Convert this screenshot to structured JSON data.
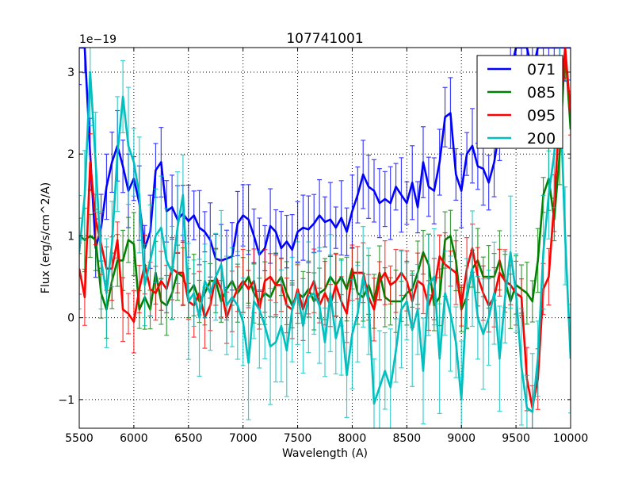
{
  "chart_data": {
    "type": "line",
    "title": "107741001",
    "xlabel": "Wavelength (A)",
    "ylabel": "Flux (erg/s/cm^2/A)",
    "y_offset_label": "1e−19",
    "xlim": [
      5500,
      10000
    ],
    "ylim": [
      -1.35,
      3.3
    ],
    "xticks": [
      5500,
      6000,
      6500,
      7000,
      7500,
      8000,
      8500,
      9000,
      9500,
      10000
    ],
    "yticks": [
      -1,
      0,
      1,
      2,
      3
    ],
    "ytick_labels": [
      "−1",
      "0",
      "1",
      "2",
      "3"
    ],
    "grid": true,
    "legend_position": "top-right",
    "x_start": 5500,
    "x_step": 50,
    "series": [
      {
        "name": "071",
        "color": "#0000ff",
        "yerr": 0.35,
        "values": [
          3.3,
          3.3,
          2.0,
          0.85,
          1.1,
          1.6,
          1.9,
          2.1,
          1.85,
          1.55,
          1.7,
          1.4,
          0.85,
          1.05,
          1.8,
          1.9,
          1.3,
          1.35,
          1.2,
          1.27,
          1.18,
          1.25,
          1.1,
          1.05,
          0.95,
          0.72,
          0.7,
          0.72,
          0.75,
          1.15,
          1.25,
          1.2,
          1.0,
          0.77,
          0.85,
          1.12,
          1.05,
          0.85,
          0.93,
          0.83,
          1.05,
          1.1,
          1.08,
          1.15,
          1.25,
          1.17,
          1.2,
          1.1,
          1.22,
          1.05,
          1.3,
          1.5,
          1.75,
          1.6,
          1.55,
          1.4,
          1.45,
          1.4,
          1.6,
          1.5,
          1.4,
          1.65,
          1.35,
          1.9,
          1.6,
          1.55,
          1.9,
          2.45,
          2.5,
          1.75,
          1.55,
          2.0,
          2.1,
          1.85,
          1.82,
          1.65,
          1.9,
          2.3,
          2.6,
          3.0,
          3.3,
          3.3,
          3.3,
          3.0,
          3.3,
          3.3,
          3.3,
          3.3,
          3.3,
          3.3,
          3.3
        ]
      },
      {
        "name": "085",
        "color": "#008000",
        "yerr": 0.3,
        "values": [
          1.0,
          0.95,
          1.0,
          0.95,
          0.3,
          0.1,
          0.45,
          0.7,
          0.7,
          0.95,
          0.9,
          0.1,
          0.25,
          0.1,
          0.55,
          0.2,
          0.15,
          0.3,
          0.55,
          0.5,
          0.3,
          0.4,
          0.2,
          0.3,
          0.45,
          0.45,
          0.2,
          0.35,
          0.45,
          0.3,
          0.4,
          0.5,
          0.3,
          0.2,
          0.3,
          0.25,
          0.4,
          0.5,
          0.3,
          0.15,
          0.3,
          0.25,
          0.35,
          0.2,
          0.3,
          0.35,
          0.5,
          0.4,
          0.5,
          0.35,
          0.6,
          0.3,
          0.25,
          0.4,
          0.2,
          0.55,
          0.25,
          0.2,
          0.2,
          0.2,
          0.3,
          0.35,
          0.55,
          0.8,
          0.65,
          0.15,
          0.25,
          0.95,
          1.0,
          0.7,
          0.1,
          0.25,
          0.6,
          0.7,
          0.5,
          0.5,
          0.5,
          0.7,
          0.45,
          0.2,
          0.4,
          0.35,
          0.3,
          0.2,
          0.7,
          1.5,
          1.7,
          1.2,
          2.0,
          3.3,
          2.3
        ]
      },
      {
        "name": "095",
        "color": "#ff0000",
        "yerr": 0.3,
        "values": [
          0.6,
          0.25,
          1.9,
          1.2,
          0.9,
          0.6,
          0.6,
          0.95,
          0.1,
          0.05,
          -0.05,
          0.35,
          0.65,
          0.35,
          0.3,
          0.45,
          0.35,
          0.6,
          0.55,
          0.55,
          0.2,
          0.15,
          0.3,
          0.0,
          0.15,
          0.5,
          0.35,
          0.0,
          0.2,
          0.35,
          0.45,
          0.35,
          0.45,
          0.1,
          0.45,
          0.5,
          0.4,
          0.4,
          0.15,
          0.1,
          0.35,
          0.1,
          0.3,
          0.45,
          0.15,
          0.3,
          0.15,
          0.4,
          0.2,
          0.05,
          0.55,
          0.55,
          0.55,
          0.25,
          0.1,
          0.45,
          0.55,
          0.4,
          0.45,
          0.55,
          0.45,
          0.2,
          0.45,
          0.4,
          0.15,
          0.35,
          0.75,
          0.65,
          0.6,
          0.55,
          0.15,
          0.6,
          0.85,
          0.5,
          0.3,
          0.15,
          0.25,
          0.55,
          0.45,
          0.4,
          0.3,
          0.25,
          -0.75,
          -1.1,
          -0.75,
          0.35,
          0.5,
          1.4,
          2.5,
          3.3,
          2.5
        ]
      },
      {
        "name": "200",
        "color": "#00bfbf",
        "yerr": 0.55,
        "values": [
          0.8,
          1.5,
          3.0,
          1.9,
          0.7,
          0.3,
          0.9,
          2.0,
          2.7,
          2.1,
          1.9,
          1.5,
          0.4,
          0.7,
          1.0,
          1.1,
          0.7,
          0.55,
          1.1,
          1.5,
          0.2,
          0.3,
          0.0,
          0.45,
          0.3,
          0.5,
          0.65,
          0.15,
          0.25,
          0.15,
          -0.05,
          -0.55,
          0.2,
          0.1,
          -0.1,
          -0.35,
          -0.3,
          -0.1,
          -0.4,
          0.1,
          0.3,
          -0.1,
          0.25,
          0.3,
          0.15,
          -0.3,
          0.3,
          -0.25,
          0.0,
          -0.7,
          -0.2,
          0.05,
          0.5,
          0.2,
          -1.05,
          -0.85,
          -0.65,
          -0.85,
          -0.4,
          0.1,
          0.2,
          -0.15,
          0.1,
          -0.65,
          0.4,
          0.5,
          -0.5,
          0.3,
          0.05,
          -0.3,
          -1.0,
          0.3,
          0.6,
          0.0,
          -0.2,
          0.0,
          0.3,
          -0.5,
          0.25,
          0.8,
          0.3,
          -0.6,
          -1.1,
          -1.15,
          -0.5,
          0.8,
          1.5,
          2.0,
          2.9,
          1.0,
          -0.5
        ]
      }
    ]
  }
}
